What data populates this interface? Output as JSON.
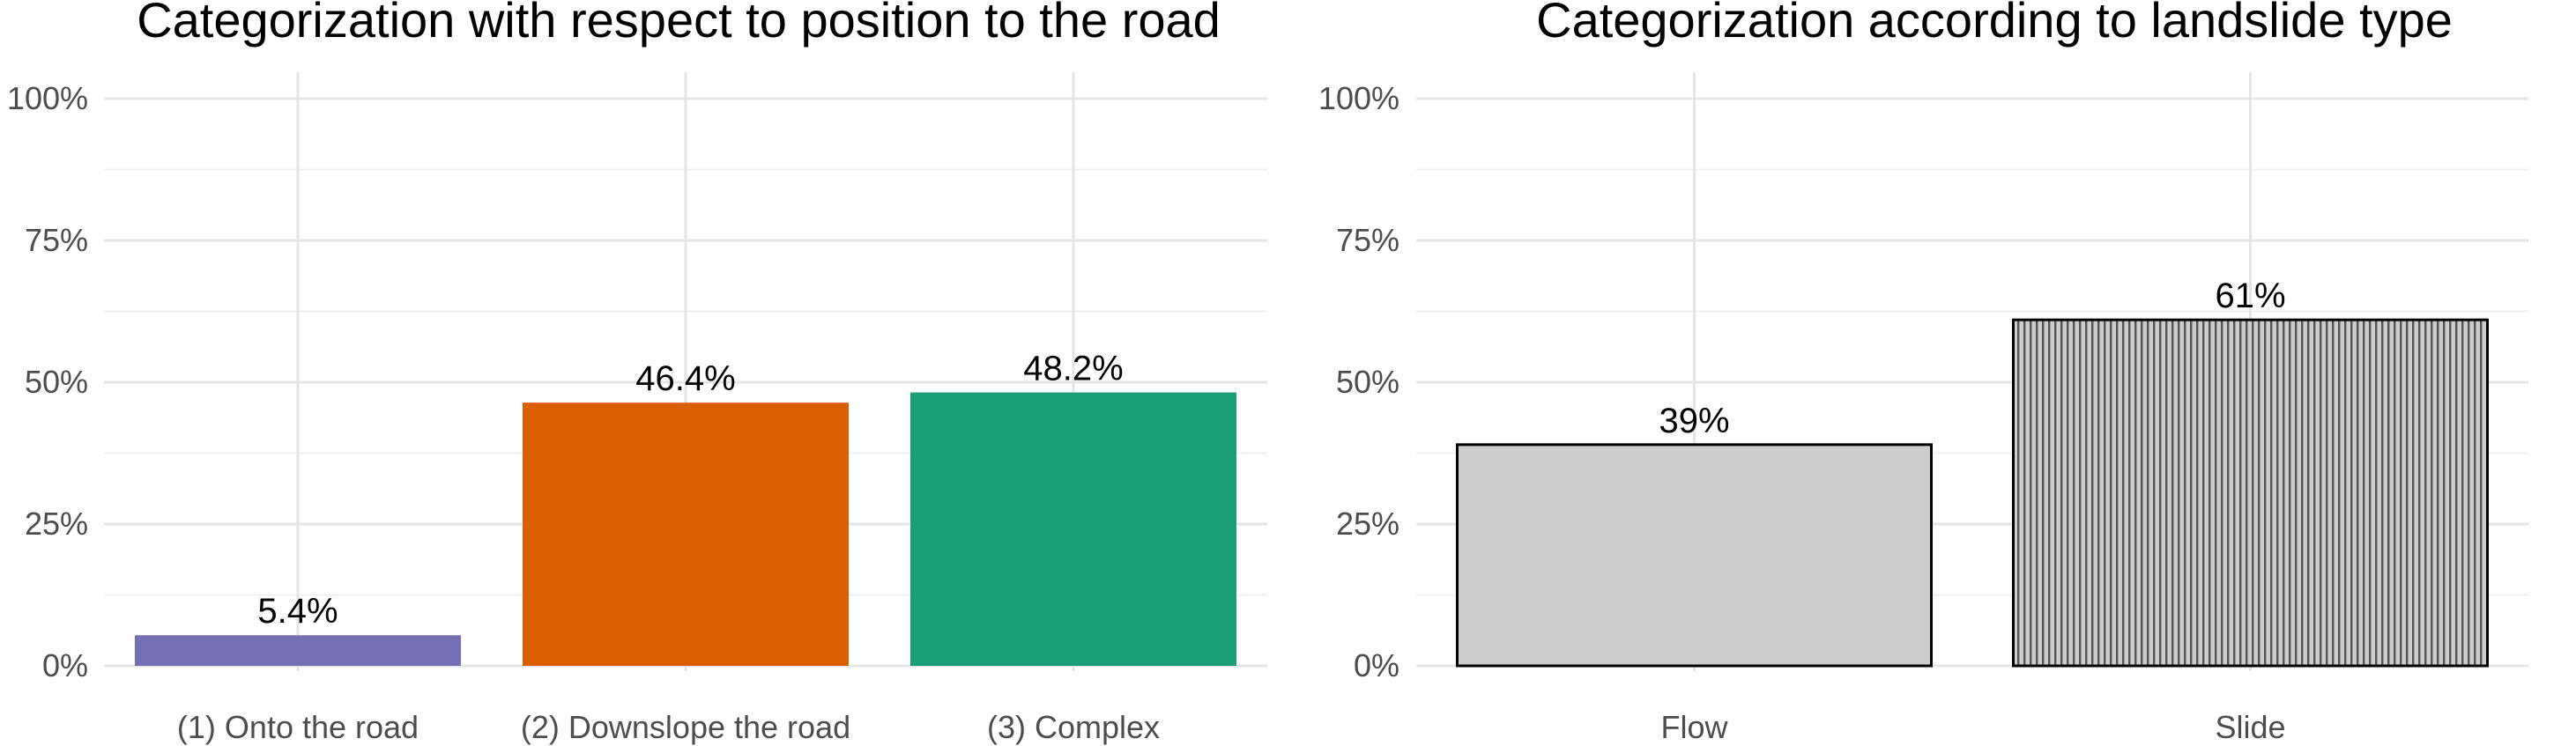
{
  "chart_data": [
    {
      "type": "bar",
      "title": "Categorization with respect to position to the road",
      "categories": [
        "(1) Onto the road",
        "(2) Downslope the road",
        "(3) Complex"
      ],
      "values": [
        5.4,
        46.4,
        48.2
      ],
      "data_labels": [
        "5.4%",
        "46.4%",
        "48.2%"
      ],
      "colors": [
        "#7570b3",
        "#d95f02",
        "#1b9e77"
      ],
      "ylim": [
        0,
        100
      ],
      "yticks": [
        0,
        25,
        50,
        75,
        100
      ],
      "ytick_labels": [
        "0%",
        "25%",
        "50%",
        "75%",
        "100%"
      ],
      "grid": true
    },
    {
      "type": "bar",
      "title": "Categorization according to landslide type",
      "categories": [
        "Flow",
        "Slide"
      ],
      "values": [
        39,
        61
      ],
      "data_labels": [
        "39%",
        "61%"
      ],
      "colors": [
        "#cccccc",
        "#cccccc"
      ],
      "patterns": [
        "none",
        "vertical-stripes"
      ],
      "bar_outline": "#000000",
      "ylim": [
        0,
        100
      ],
      "yticks": [
        0,
        25,
        50,
        75,
        100
      ],
      "ytick_labels": [
        "0%",
        "25%",
        "50%",
        "75%",
        "100%"
      ],
      "grid": true
    }
  ]
}
